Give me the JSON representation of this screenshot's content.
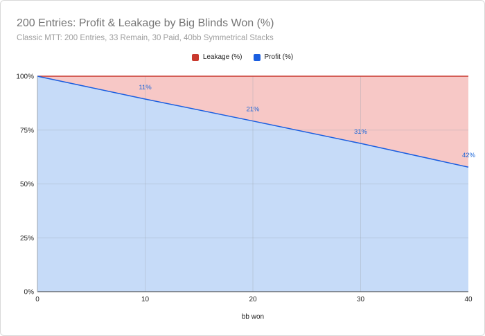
{
  "chart_data": {
    "type": "area",
    "title": "200 Entries: Profit & Leakage by Big Blinds Won (%)",
    "subtitle": "Classic MTT: 200 Entries, 33 Remain, 30 Paid, 40bb Symmetrical Stacks",
    "xlabel": "bb won",
    "ylabel": "",
    "x": [
      0,
      10,
      20,
      30,
      40
    ],
    "xlim": [
      0,
      40
    ],
    "ylim": [
      0,
      100
    ],
    "x_ticks": [
      "0",
      "10",
      "20",
      "30",
      "40"
    ],
    "y_ticks": [
      "0%",
      "25%",
      "50%",
      "75%",
      "100%"
    ],
    "stacked": true,
    "series": [
      {
        "name": "Profit (%)",
        "values": [
          100,
          89.4,
          79.2,
          68.8,
          57.8
        ],
        "color": "#1a5ee0",
        "fill": "#c6dbf8"
      },
      {
        "name": "Leakage (%)",
        "values": [
          0,
          10.6,
          20.8,
          31.2,
          42.2
        ],
        "color": "#c9392e",
        "fill": "#f7c8c6"
      }
    ],
    "data_labels": [
      {
        "x": 10,
        "text": "11%"
      },
      {
        "x": 20,
        "text": "21%"
      },
      {
        "x": 30,
        "text": "31%"
      },
      {
        "x": 40,
        "text": "42%"
      }
    ],
    "legend_position": "top",
    "grid": true
  }
}
